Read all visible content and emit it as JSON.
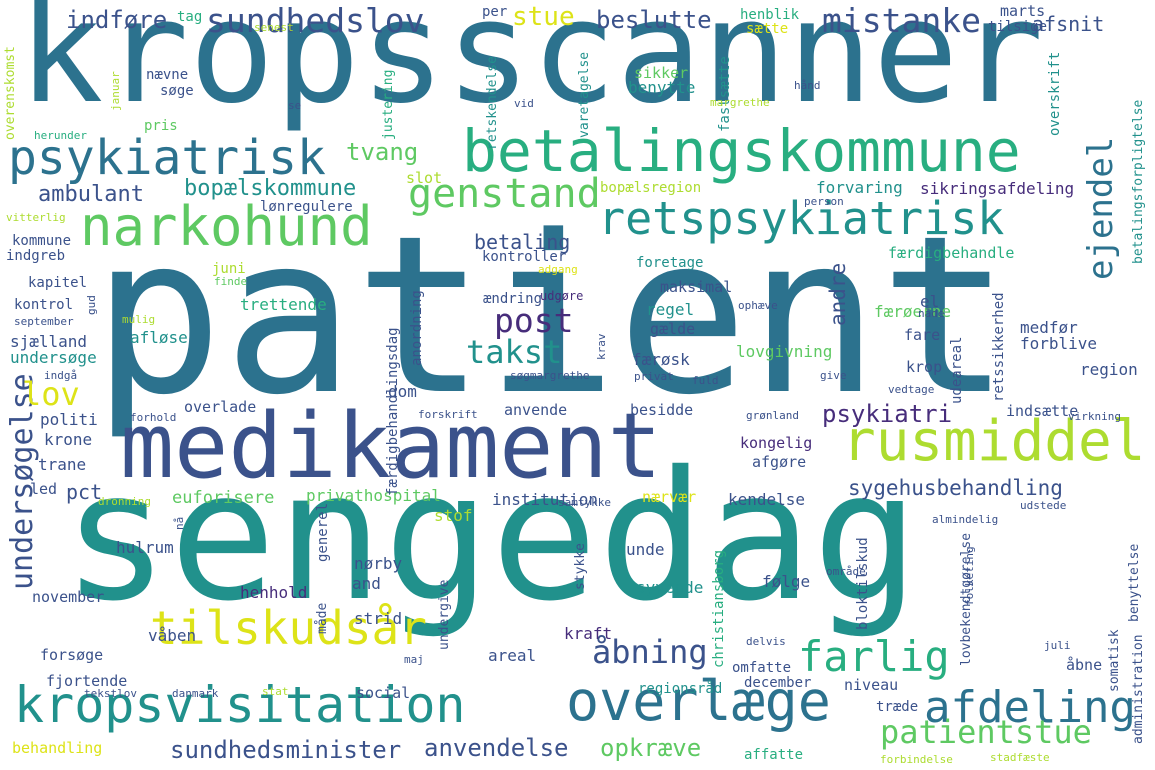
{
  "title": "",
  "palette": [
    "#2c728e",
    "#21918c",
    "#28ae80",
    "#5ec962",
    "#addc30",
    "#dde318",
    "#3b528b",
    "#472d7b",
    "#440154"
  ],
  "words": [
    {
      "text": "kropsscanner",
      "color": "#2c728e"
    },
    {
      "text": "patient",
      "color": "#2c728e"
    },
    {
      "text": "sengedag",
      "color": "#21918c"
    },
    {
      "text": "medikament",
      "color": "#3b528b"
    },
    {
      "text": "betalingskommune",
      "color": "#28ae80"
    },
    {
      "text": "narkohund",
      "color": "#5ec962"
    },
    {
      "text": "retspsykiatrisk",
      "color": "#21918c"
    },
    {
      "text": "psykiatrisk",
      "color": "#2c728e"
    },
    {
      "text": "kropsvisitation",
      "color": "#21918c"
    },
    {
      "text": "overlæge",
      "color": "#2c728e"
    },
    {
      "text": "rusmiddel",
      "color": "#addc30"
    },
    {
      "text": "tilskudsår",
      "color": "#dde318"
    },
    {
      "text": "afdeling",
      "color": "#2c728e"
    },
    {
      "text": "farlig",
      "color": "#28ae80"
    },
    {
      "text": "genstand",
      "color": "#5ec962"
    },
    {
      "text": "mistanke",
      "color": "#3b528b"
    },
    {
      "text": "sundhedslov",
      "color": "#3b528b"
    },
    {
      "text": "undersøgelse",
      "color": "#3b528b"
    },
    {
      "text": "ejendel",
      "color": "#2c728e"
    },
    {
      "text": "patientstue",
      "color": "#5ec962"
    },
    {
      "text": "åbning",
      "color": "#3b528b"
    },
    {
      "text": "post",
      "color": "#472d7b"
    },
    {
      "text": "takst",
      "color": "#21918c"
    },
    {
      "text": "stue",
      "color": "#dde318"
    },
    {
      "text": "lov",
      "color": "#dde318"
    },
    {
      "text": "sundhedsminister",
      "color": "#3b528b"
    },
    {
      "text": "anvendelse",
      "color": "#3b528b"
    },
    {
      "text": "opkræve",
      "color": "#5ec962"
    },
    {
      "text": "psykiatri",
      "color": "#472d7b"
    },
    {
      "text": "sygehusbehandling",
      "color": "#3b528b"
    },
    {
      "text": "beslutte",
      "color": "#3b528b"
    },
    {
      "text": "indføre",
      "color": "#3b528b"
    },
    {
      "text": "afsnit",
      "color": "#3b528b"
    },
    {
      "text": "tvang",
      "color": "#5ec962"
    },
    {
      "text": "ambulant",
      "color": "#3b528b"
    },
    {
      "text": "bopælskommune",
      "color": "#21918c"
    },
    {
      "text": "betaling",
      "color": "#3b528b"
    },
    {
      "text": "andre",
      "color": "#3b528b"
    },
    {
      "text": "pct",
      "color": "#3b528b"
    },
    {
      "text": "euforisere",
      "color": "#5ec962"
    },
    {
      "text": "privathospital",
      "color": "#5ec962"
    },
    {
      "text": "institution",
      "color": "#3b528b"
    },
    {
      "text": "nærvær",
      "color": "#dde318"
    },
    {
      "text": "kendelse",
      "color": "#3b528b"
    },
    {
      "text": "regionsråd",
      "color": "#21918c"
    },
    {
      "text": "social",
      "color": "#3b528b"
    },
    {
      "text": "december",
      "color": "#3b528b"
    },
    {
      "text": "niveau",
      "color": "#3b528b"
    },
    {
      "text": "behandling",
      "color": "#dde318"
    },
    {
      "text": "affatte",
      "color": "#28ae80"
    },
    {
      "text": "forbindelse",
      "color": "#addc30"
    },
    {
      "text": "stadfæste",
      "color": "#addc30"
    },
    {
      "text": "administration",
      "color": "#3b528b"
    },
    {
      "text": "somatisk",
      "color": "#3b528b"
    },
    {
      "text": "benyttelse",
      "color": "#3b528b"
    },
    {
      "text": "åbne",
      "color": "#3b528b"
    },
    {
      "text": "træde",
      "color": "#3b528b"
    },
    {
      "text": "omfatte",
      "color": "#3b528b"
    },
    {
      "text": "tag",
      "color": "#28ae80"
    },
    {
      "text": "per",
      "color": "#3b528b"
    },
    {
      "text": "henblik",
      "color": "#28ae80"
    },
    {
      "text": "marts",
      "color": "#3b528b"
    },
    {
      "text": "tilsige",
      "color": "#3b528b"
    },
    {
      "text": "sætte",
      "color": "#dde318"
    },
    {
      "text": "senest",
      "color": "#addc30"
    },
    {
      "text": "overenskomst",
      "color": "#addc30"
    },
    {
      "text": "nævne",
      "color": "#3b528b"
    },
    {
      "text": "søge",
      "color": "#3b528b"
    },
    {
      "text": "pris",
      "color": "#5ec962"
    },
    {
      "text": "justering",
      "color": "#28ae80"
    },
    {
      "text": "sikker",
      "color": "#5ec962"
    },
    {
      "text": "benytte",
      "color": "#21918c"
    },
    {
      "text": "hånd",
      "color": "#3b528b"
    },
    {
      "text": "overskrift",
      "color": "#21918c"
    },
    {
      "text": "betalingsforpligtelse",
      "color": "#21918c"
    },
    {
      "text": "slot",
      "color": "#addc30"
    },
    {
      "text": "retskendelse",
      "color": "#21918c"
    },
    {
      "text": "varetagelse",
      "color": "#21918c"
    },
    {
      "text": "fastsætte",
      "color": "#21918c"
    },
    {
      "text": "vid",
      "color": "#3b528b"
    },
    {
      "text": "margrethe",
      "color": "#addc30"
    },
    {
      "text": "januar",
      "color": "#addc30"
    },
    {
      "text": "se",
      "color": "#3b528b"
    },
    {
      "text": "herunder",
      "color": "#28ae80"
    },
    {
      "text": "bopælsregion",
      "color": "#addc30"
    },
    {
      "text": "person",
      "color": "#3b528b"
    },
    {
      "text": "forvaring",
      "color": "#21918c"
    },
    {
      "text": "sikringsafdeling",
      "color": "#472d7b"
    },
    {
      "text": "lønregulere",
      "color": "#3b528b"
    },
    {
      "text": "vitterlig",
      "color": "#addc30"
    },
    {
      "text": "kommune",
      "color": "#3b528b"
    },
    {
      "text": "indgreb",
      "color": "#3b528b"
    },
    {
      "text": "kapitel",
      "color": "#3b528b"
    },
    {
      "text": "juni",
      "color": "#addc30"
    },
    {
      "text": "finde",
      "color": "#5ec962"
    },
    {
      "text": "kontroller",
      "color": "#3b528b"
    },
    {
      "text": "foretage",
      "color": "#21918c"
    },
    {
      "text": "adgang",
      "color": "#dde318"
    },
    {
      "text": "færdigbehandle",
      "color": "#28ae80"
    },
    {
      "text": "kontrol",
      "color": "#3b528b"
    },
    {
      "text": "trettende",
      "color": "#28ae80"
    },
    {
      "text": "ændring",
      "color": "#3b528b"
    },
    {
      "text": "maksimal",
      "color": "#3b528b"
    },
    {
      "text": "udgøre",
      "color": "#472d7b"
    },
    {
      "text": "færøerne",
      "color": "#5ec962"
    },
    {
      "text": "regel",
      "color": "#21918c"
    },
    {
      "text": "gælde",
      "color": "#3b528b"
    },
    {
      "text": "ophæve",
      "color": "#3b528b"
    },
    {
      "text": "el",
      "color": "#3b528b"
    },
    {
      "text": "nåde",
      "color": "#3b528b"
    },
    {
      "text": "medfør",
      "color": "#3b528b"
    },
    {
      "text": "forblive",
      "color": "#3b528b"
    },
    {
      "text": "fare",
      "color": "#3b528b"
    },
    {
      "text": "september",
      "color": "#3b528b"
    },
    {
      "text": "mulig",
      "color": "#addc30"
    },
    {
      "text": "sjælland",
      "color": "#3b528b"
    },
    {
      "text": "undersøge",
      "color": "#21918c"
    },
    {
      "text": "afløse",
      "color": "#21918c"
    },
    {
      "text": "indgå",
      "color": "#3b528b"
    },
    {
      "text": "lovgivning",
      "color": "#5ec962"
    },
    {
      "text": "krop",
      "color": "#3b528b"
    },
    {
      "text": "region",
      "color": "#3b528b"
    },
    {
      "text": "færøsk",
      "color": "#3b528b"
    },
    {
      "text": "søgmargrethe",
      "color": "#3b528b"
    },
    {
      "text": "privat",
      "color": "#3b528b"
    },
    {
      "text": "fuld",
      "color": "#3b528b"
    },
    {
      "text": "give",
      "color": "#3b528b"
    },
    {
      "text": "vedtage",
      "color": "#3b528b"
    },
    {
      "text": "dom",
      "color": "#3b528b"
    },
    {
      "text": "politi",
      "color": "#3b528b"
    },
    {
      "text": "forhold",
      "color": "#3b528b"
    },
    {
      "text": "overlade",
      "color": "#3b528b"
    },
    {
      "text": "forskrift",
      "color": "#3b528b"
    },
    {
      "text": "anvende",
      "color": "#3b528b"
    },
    {
      "text": "besidde",
      "color": "#3b528b"
    },
    {
      "text": "grønland",
      "color": "#3b528b"
    },
    {
      "text": "indsætte",
      "color": "#3b528b"
    },
    {
      "text": "virkning",
      "color": "#3b528b"
    },
    {
      "text": "krone",
      "color": "#3b528b"
    },
    {
      "text": "kongelig",
      "color": "#472d7b"
    },
    {
      "text": "trane",
      "color": "#3b528b"
    },
    {
      "text": "afgøre",
      "color": "#3b528b"
    },
    {
      "text": "led",
      "color": "#3b528b"
    },
    {
      "text": "dronning",
      "color": "#addc30"
    },
    {
      "text": "stof",
      "color": "#addc30"
    },
    {
      "text": "samtykke",
      "color": "#3b528b"
    },
    {
      "text": "udstede",
      "color": "#3b528b"
    },
    {
      "text": "hulrum",
      "color": "#3b528b"
    },
    {
      "text": "generel",
      "color": "#3b528b"
    },
    {
      "text": "nørby",
      "color": "#3b528b"
    },
    {
      "text": "and",
      "color": "#3b528b"
    },
    {
      "text": "unde",
      "color": "#3b528b"
    },
    {
      "text": "følge",
      "color": "#3b528b"
    },
    {
      "text": "almindelig",
      "color": "#3b528b"
    },
    {
      "text": "syvende",
      "color": "#21918c"
    },
    {
      "text": "stykke",
      "color": "#3b528b"
    },
    {
      "text": "christiansborg",
      "color": "#28ae80"
    },
    {
      "text": "bloktilskud",
      "color": "#3b528b"
    },
    {
      "text": "lovbekendtgørelse",
      "color": "#3b528b"
    },
    {
      "text": "november",
      "color": "#3b528b"
    },
    {
      "text": "henhold",
      "color": "#472d7b"
    },
    {
      "text": "strid",
      "color": "#3b528b"
    },
    {
      "text": "kraft",
      "color": "#472d7b"
    },
    {
      "text": "måde",
      "color": "#3b528b"
    },
    {
      "text": "våben",
      "color": "#3b528b"
    },
    {
      "text": "forsøge",
      "color": "#3b528b"
    },
    {
      "text": "undergive",
      "color": "#3b528b"
    },
    {
      "text": "areal",
      "color": "#3b528b"
    },
    {
      "text": "fjortende",
      "color": "#3b528b"
    },
    {
      "text": "tekstlov",
      "color": "#3b528b"
    },
    {
      "text": "danmark",
      "color": "#3b528b"
    },
    {
      "text": "stat",
      "color": "#addc30"
    },
    {
      "text": "maj",
      "color": "#3b528b"
    },
    {
      "text": "delvis",
      "color": "#3b528b"
    },
    {
      "text": "område",
      "color": "#3b528b"
    },
    {
      "text": "folketing",
      "color": "#3b528b"
    },
    {
      "text": "juli",
      "color": "#3b528b"
    },
    {
      "text": "udeareal",
      "color": "#3b528b"
    },
    {
      "text": "retssikkerhed",
      "color": "#3b528b"
    },
    {
      "text": "færdigbehandlingsdag",
      "color": "#3b528b"
    },
    {
      "text": "anordning",
      "color": "#3b528b"
    },
    {
      "text": "krav",
      "color": "#3b528b"
    },
    {
      "text": "gud",
      "color": "#3b528b"
    },
    {
      "text": "nå",
      "color": "#3b528b"
    }
  ]
}
